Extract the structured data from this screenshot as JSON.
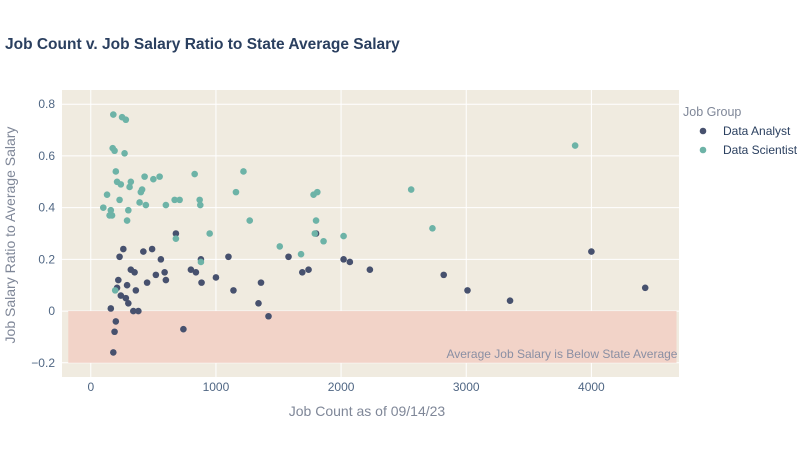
{
  "chart_data": {
    "type": "scatter",
    "title": "Job Count v. Job Salary Ratio to State Average Salary",
    "xlabel": "Job Count as of 09/14/23",
    "ylabel": "Job Salary Ratio to Average Salary",
    "xlim": [
      -230,
      4700
    ],
    "ylim": [
      -0.255,
      0.855
    ],
    "x_ticks": [
      0,
      1000,
      2000,
      3000,
      4000
    ],
    "x_tick_labels": [
      "0",
      "1000",
      "2000",
      "3000",
      "4000"
    ],
    "y_ticks": [
      -0.2,
      0,
      0.2,
      0.4,
      0.6,
      0.8
    ],
    "y_tick_labels": [
      "−0.2",
      "0",
      "0.2",
      "0.4",
      "0.6",
      "0.8"
    ],
    "grid": true,
    "legend": {
      "title": "Job Group",
      "placement": "right"
    },
    "shaded_region": {
      "x_range": [
        -180,
        4680
      ],
      "y_range": [
        -0.2,
        0
      ],
      "color": "#f2d3c8",
      "label": "Average Job Salary is Below State Average"
    },
    "series": [
      {
        "name": "Data Analyst",
        "color": "#47516e",
        "points": [
          [
            160,
            0.01
          ],
          [
            180,
            -0.16
          ],
          [
            190,
            -0.08
          ],
          [
            200,
            -0.04
          ],
          [
            210,
            0.09
          ],
          [
            220,
            0.12
          ],
          [
            230,
            0.21
          ],
          [
            240,
            0.06
          ],
          [
            260,
            0.24
          ],
          [
            280,
            0.05
          ],
          [
            290,
            0.1
          ],
          [
            300,
            0.03
          ],
          [
            320,
            0.16
          ],
          [
            340,
            0.0
          ],
          [
            350,
            0.15
          ],
          [
            360,
            0.08
          ],
          [
            380,
            0.0
          ],
          [
            420,
            0.23
          ],
          [
            450,
            0.11
          ],
          [
            490,
            0.24
          ],
          [
            520,
            0.14
          ],
          [
            560,
            0.2
          ],
          [
            590,
            0.15
          ],
          [
            600,
            0.12
          ],
          [
            680,
            0.3
          ],
          [
            740,
            -0.07
          ],
          [
            800,
            0.16
          ],
          [
            840,
            0.15
          ],
          [
            880,
            0.2
          ],
          [
            885,
            0.11
          ],
          [
            1000,
            0.13
          ],
          [
            1100,
            0.21
          ],
          [
            1140,
            0.08
          ],
          [
            1340,
            0.03
          ],
          [
            1360,
            0.11
          ],
          [
            1420,
            -0.02
          ],
          [
            1580,
            0.21
          ],
          [
            1690,
            0.15
          ],
          [
            1740,
            0.16
          ],
          [
            1800,
            0.3
          ],
          [
            2020,
            0.2
          ],
          [
            2070,
            0.19
          ],
          [
            2230,
            0.16
          ],
          [
            2820,
            0.14
          ],
          [
            3010,
            0.08
          ],
          [
            3350,
            0.04
          ],
          [
            4000,
            0.23
          ],
          [
            4430,
            0.09
          ]
        ]
      },
      {
        "name": "Data Scientist",
        "color": "#6db3a7",
        "points": [
          [
            100,
            0.4
          ],
          [
            130,
            0.45
          ],
          [
            150,
            0.37
          ],
          [
            160,
            0.39
          ],
          [
            170,
            0.37
          ],
          [
            175,
            0.63
          ],
          [
            180,
            0.76
          ],
          [
            190,
            0.62
          ],
          [
            195,
            0.08
          ],
          [
            200,
            0.54
          ],
          [
            210,
            0.5
          ],
          [
            230,
            0.43
          ],
          [
            240,
            0.49
          ],
          [
            250,
            0.75
          ],
          [
            270,
            0.61
          ],
          [
            280,
            0.74
          ],
          [
            290,
            0.35
          ],
          [
            300,
            0.39
          ],
          [
            310,
            0.48
          ],
          [
            320,
            0.5
          ],
          [
            390,
            0.42
          ],
          [
            400,
            0.46
          ],
          [
            410,
            0.47
          ],
          [
            430,
            0.52
          ],
          [
            440,
            0.41
          ],
          [
            500,
            0.51
          ],
          [
            550,
            0.52
          ],
          [
            600,
            0.41
          ],
          [
            670,
            0.43
          ],
          [
            680,
            0.28
          ],
          [
            710,
            0.43
          ],
          [
            830,
            0.53
          ],
          [
            870,
            0.43
          ],
          [
            875,
            0.41
          ],
          [
            880,
            0.19
          ],
          [
            950,
            0.3
          ],
          [
            1160,
            0.46
          ],
          [
            1220,
            0.54
          ],
          [
            1270,
            0.35
          ],
          [
            1510,
            0.25
          ],
          [
            1680,
            0.22
          ],
          [
            1780,
            0.45
          ],
          [
            1790,
            0.3
          ],
          [
            1800,
            0.35
          ],
          [
            1810,
            0.46
          ],
          [
            1860,
            0.27
          ],
          [
            2020,
            0.29
          ],
          [
            2560,
            0.47
          ],
          [
            2730,
            0.32
          ],
          [
            3870,
            0.64
          ]
        ]
      }
    ]
  }
}
